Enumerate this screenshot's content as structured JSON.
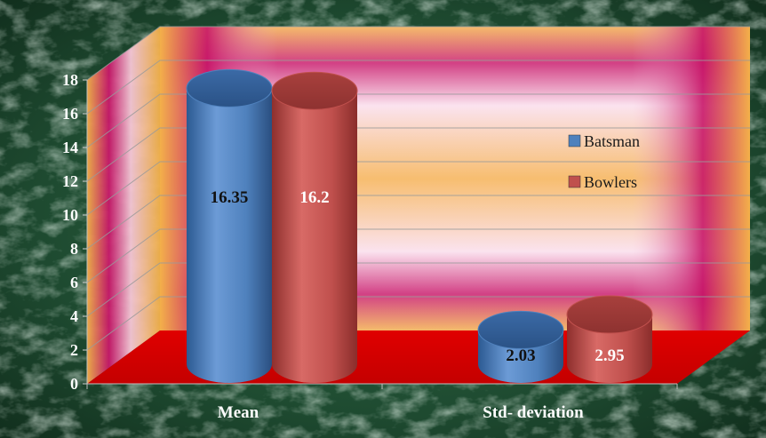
{
  "chart_data": {
    "type": "bar",
    "categories": [
      "Mean",
      "Std- deviation"
    ],
    "series": [
      {
        "name": "Batsman",
        "values": [
          16.35,
          2.03
        ],
        "color": "#4f81bd"
      },
      {
        "name": "Bowlers",
        "values": [
          16.2,
          2.95
        ],
        "color": "#c0504d"
      }
    ],
    "title": "",
    "xlabel": "",
    "ylabel": "",
    "ylim": [
      0,
      18
    ],
    "yticks": [
      "0",
      "2",
      "4",
      "6",
      "8",
      "10",
      "12",
      "14",
      "16",
      "18"
    ],
    "data_labels": [
      "16.35",
      "16.2",
      "2.03",
      "2.95"
    ],
    "grid": true,
    "legend": "right",
    "style": "3d-cylinder",
    "colors": {
      "background": "#1e4a30",
      "floor": "#cc0000",
      "wall": "#f2b350",
      "wall_frame": "#c8186a"
    }
  }
}
